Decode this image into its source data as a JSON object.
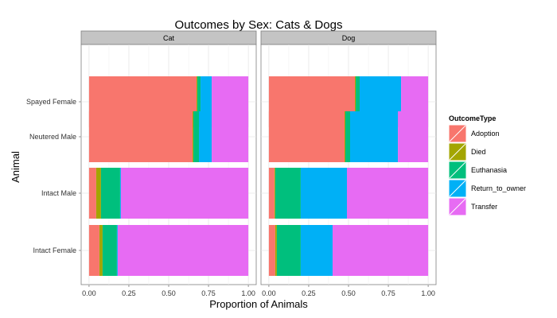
{
  "chart_data": {
    "type": "bar",
    "orientation": "horizontal",
    "stacked": true,
    "title": "Outcomes by Sex: Cats & Dogs",
    "xlabel": "Proportion of Animals",
    "ylabel": "Animal",
    "xlim": [
      0,
      1
    ],
    "xticks": [
      "0.00",
      "0.25",
      "0.50",
      "0.75",
      "1.00"
    ],
    "grid": true,
    "legend_position": "right",
    "legend_title": "OutcomeType",
    "categories": [
      "Spayed Female",
      "Neutered Male",
      "Intact Male",
      "Intact Female"
    ],
    "series": [
      {
        "name": "Adoption",
        "color": "#F8766D"
      },
      {
        "name": "Died",
        "color": "#A3A500"
      },
      {
        "name": "Euthanasia",
        "color": "#00BF7D"
      },
      {
        "name": "Return_to_owner",
        "color": "#00B0F6"
      },
      {
        "name": "Transfer",
        "color": "#E76BF3"
      }
    ],
    "panels": [
      {
        "label": "Cat",
        "values": {
          "Spayed Female": [
            0.675,
            0.005,
            0.02,
            0.07,
            0.23
          ],
          "Neutered Male": [
            0.65,
            0.005,
            0.035,
            0.08,
            0.23
          ],
          "Intact Male": [
            0.045,
            0.03,
            0.12,
            0.005,
            0.8
          ],
          "Intact Female": [
            0.065,
            0.02,
            0.09,
            0.005,
            0.82
          ]
        }
      },
      {
        "label": "Dog",
        "values": {
          "Spayed Female": [
            0.54,
            0.005,
            0.025,
            0.26,
            0.17
          ],
          "Neutered Male": [
            0.475,
            0.005,
            0.03,
            0.3,
            0.19
          ],
          "Intact Male": [
            0.035,
            0.005,
            0.16,
            0.29,
            0.51
          ],
          "Intact Female": [
            0.04,
            0.01,
            0.15,
            0.2,
            0.6
          ]
        }
      }
    ]
  }
}
